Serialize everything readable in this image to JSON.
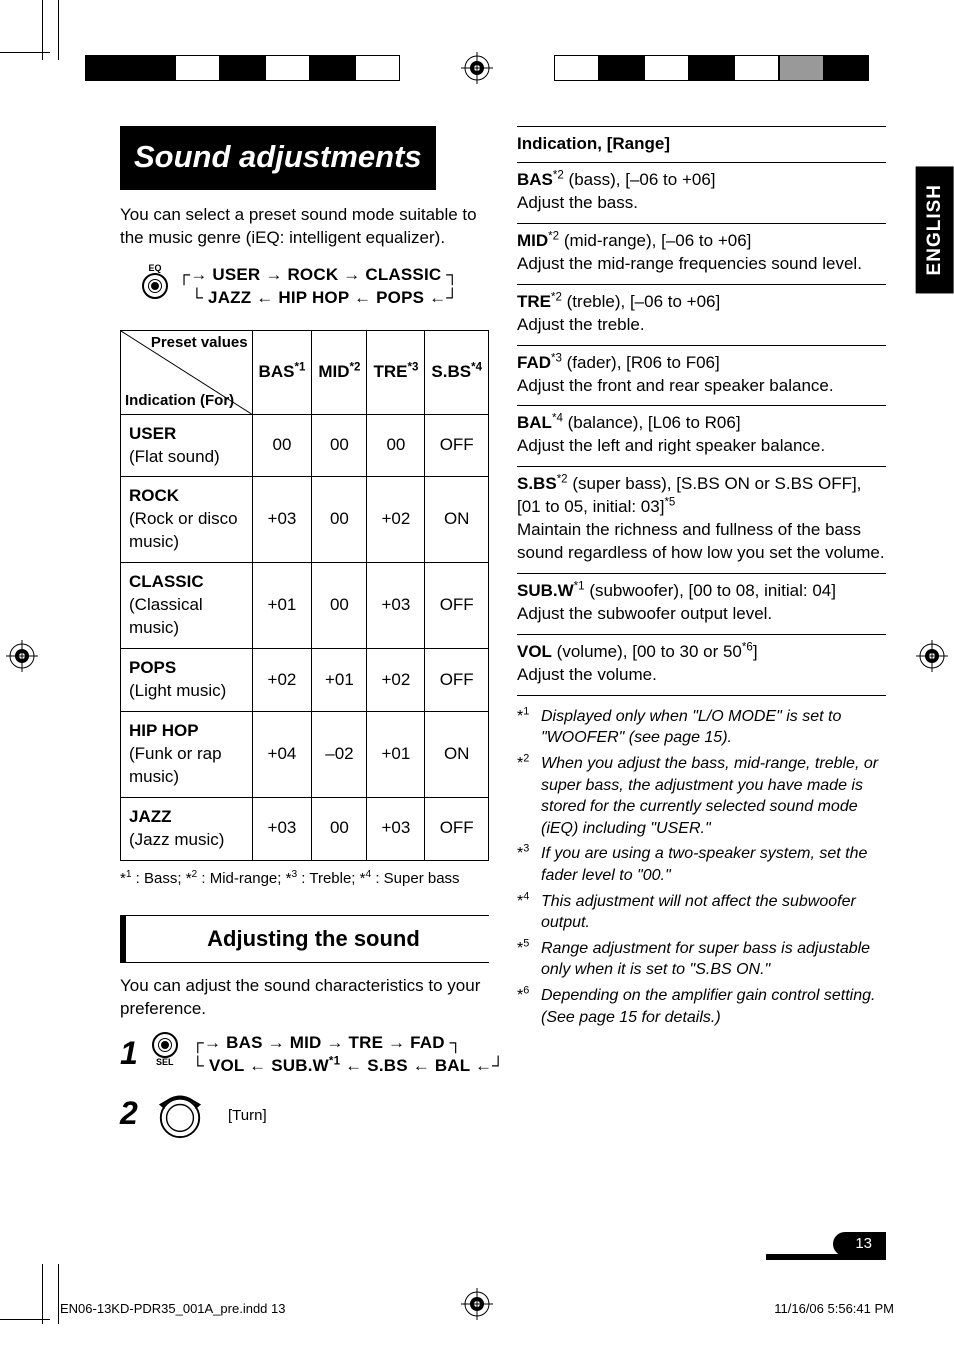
{
  "language_tab": "ENGLISH",
  "title": "Sound adjustments",
  "intro": "You can select a preset sound mode suitable to the music genre (iEQ: intelligent equalizer).",
  "eq_button_label": "EQ",
  "eq_cycle": {
    "row1": [
      "USER",
      "ROCK",
      "CLASSIC"
    ],
    "row2": [
      "JAZZ",
      "HIP HOP",
      "POPS"
    ]
  },
  "preset_table": {
    "diag_top": "Preset values",
    "diag_bottom": "Indication (For)",
    "columns": [
      {
        "label": "BAS",
        "note": "*1"
      },
      {
        "label": "MID",
        "note": "*2"
      },
      {
        "label": "TRE",
        "note": "*3"
      },
      {
        "label": "S.BS",
        "note": "*4"
      }
    ],
    "rows": [
      {
        "name": "USER",
        "desc": "(Flat sound)",
        "vals": [
          "00",
          "00",
          "00",
          "OFF"
        ]
      },
      {
        "name": "ROCK",
        "desc": "(Rock or disco music)",
        "vals": [
          "+03",
          "00",
          "+02",
          "ON"
        ]
      },
      {
        "name": "CLASSIC",
        "desc": "(Classical music)",
        "vals": [
          "+01",
          "00",
          "+03",
          "OFF"
        ]
      },
      {
        "name": "POPS",
        "desc": "(Light music)",
        "vals": [
          "+02",
          "+01",
          "+02",
          "OFF"
        ]
      },
      {
        "name": "HIP HOP",
        "desc": "(Funk or rap music)",
        "vals": [
          "+04",
          "–02",
          "+01",
          "ON"
        ]
      },
      {
        "name": "JAZZ",
        "desc": "(Jazz music)",
        "vals": [
          "+03",
          "00",
          "+03",
          "OFF"
        ]
      }
    ],
    "legend": "*1 : Bass; *2 : Mid-range; *3 : Treble; *4 : Super bass"
  },
  "adjust_heading": "Adjusting the sound",
  "adjust_intro": "You can adjust the sound characteristics to your preference.",
  "sel_button_label": "SEL",
  "sel_cycle": {
    "row1": [
      "BAS",
      "MID",
      "TRE",
      "FAD"
    ],
    "row2": [
      "VOL",
      "SUB.W*1",
      "S.BS",
      "BAL"
    ]
  },
  "turn_label": "[Turn]",
  "indication": {
    "header": "Indication, [Range]",
    "items": [
      {
        "name": "BAS",
        "note": "*2",
        "range": " (bass), [–06 to +06]",
        "desc": "Adjust the bass."
      },
      {
        "name": "MID",
        "note": "*2",
        "range": " (mid-range), [–06 to +06]",
        "desc": "Adjust the mid-range frequencies sound level."
      },
      {
        "name": "TRE",
        "note": "*2",
        "range": " (treble), [–06 to +06]",
        "desc": "Adjust the treble."
      },
      {
        "name": "FAD",
        "note": "*3",
        "range": " (fader), [R06 to F06]",
        "desc": "Adjust the front and rear speaker balance."
      },
      {
        "name": "BAL",
        "note": "*4",
        "range": " (balance), [L06 to R06]",
        "desc": "Adjust the left and right speaker balance."
      },
      {
        "name": "S.BS",
        "note": "*2",
        "range": " (super bass), [S.BS ON or S.BS OFF], [01 to 05, initial: 03]*5",
        "desc": "Maintain the richness and fullness of the bass sound regardless of how low you set the volume."
      },
      {
        "name": "SUB.W",
        "note": "*1",
        "range": " (subwoofer), [00 to 08, initial: 04]",
        "desc": "Adjust the subwoofer output level."
      },
      {
        "name": "VOL",
        "note": "",
        "range": " (volume), [00 to 30 or 50*6]",
        "desc": "Adjust the volume."
      }
    ]
  },
  "footnotes": [
    {
      "mark": "*1",
      "text": "Displayed only when \"L/O MODE\" is set to \"WOOFER\" (see page 15)."
    },
    {
      "mark": "*2",
      "text": "When you adjust the bass, mid-range, treble, or super bass, the adjustment you have made is stored for the currently selected sound mode (iEQ) including \"USER.\""
    },
    {
      "mark": "*3",
      "text": "If you are using a two-speaker system, set the fader level to \"00.\""
    },
    {
      "mark": "*4",
      "text": "This adjustment will not affect the subwoofer output."
    },
    {
      "mark": "*5",
      "text": "Range adjustment for super bass is adjustable only when it is set to \"S.BS ON.\""
    },
    {
      "mark": "*6",
      "text": "Depending on the amplifier gain control setting. (See page 15 for details.)"
    }
  ],
  "page_number": "13",
  "footer_left": "EN06-13KD-PDR35_001A_pre.indd   13",
  "footer_right": "11/16/06   5:56:41 PM"
}
